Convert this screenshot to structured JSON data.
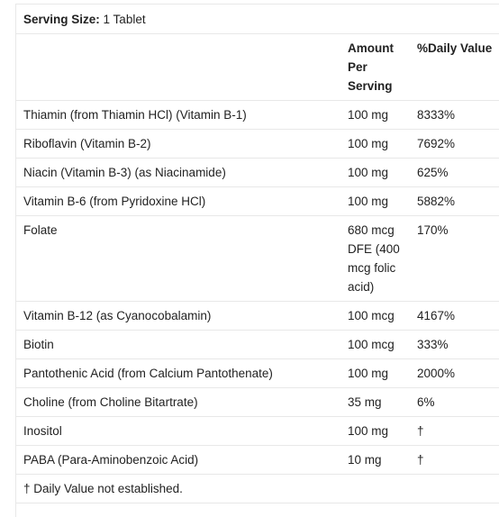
{
  "serving": {
    "label": "Serving Size:",
    "value": "1 Tablet"
  },
  "header": {
    "name": "",
    "amount": "Amount Per Serving",
    "daily_value": "%Daily Value"
  },
  "rows": [
    {
      "name": "Thiamin (from Thiamin HCl) (Vitamin B-1)",
      "amount": "100 mg",
      "dv": "8333%"
    },
    {
      "name": "Riboflavin (Vitamin B-2)",
      "amount": "100 mg",
      "dv": "7692%"
    },
    {
      "name": "Niacin (Vitamin B-3) (as Niacinamide)",
      "amount": "100 mg",
      "dv": "625%"
    },
    {
      "name": "Vitamin B-6 (from Pyridoxine HCl)",
      "amount": "100 mg",
      "dv": "5882%"
    },
    {
      "name": "Folate",
      "amount": "680 mcg DFE (400 mcg folic acid)",
      "dv": "170%"
    },
    {
      "name": "Vitamin B-12 (as Cyanocobalamin)",
      "amount": "100 mcg",
      "dv": "4167%"
    },
    {
      "name": "Biotin",
      "amount": "100 mcg",
      "dv": "333%"
    },
    {
      "name": "Pantothenic Acid (from Calcium Pantothenate)",
      "amount": "100 mg",
      "dv": "2000%"
    },
    {
      "name": "Choline (from Choline Bitartrate)",
      "amount": "35 mg",
      "dv": "6%"
    },
    {
      "name": "Inositol",
      "amount": "100 mg",
      "dv": "†"
    },
    {
      "name": "PABA (Para-Aminobenzoic Acid)",
      "amount": "10 mg",
      "dv": "†"
    }
  ],
  "footnote": "† Daily Value not established."
}
